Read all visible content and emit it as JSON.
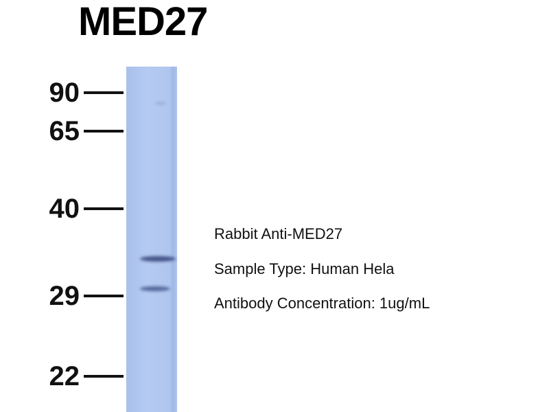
{
  "title": "MED27",
  "markers": [
    {
      "label": "90"
    },
    {
      "label": "65"
    },
    {
      "label": "40"
    },
    {
      "label": "29"
    },
    {
      "label": "22"
    }
  ],
  "info": {
    "antibody": "Rabbit Anti-MED27",
    "sample": "Sample Type: Human Hela",
    "concentration": "Antibody Concentration: 1ug/mL"
  },
  "colors": {
    "lane": "#b2c8f0",
    "band": "#3e4f86"
  }
}
